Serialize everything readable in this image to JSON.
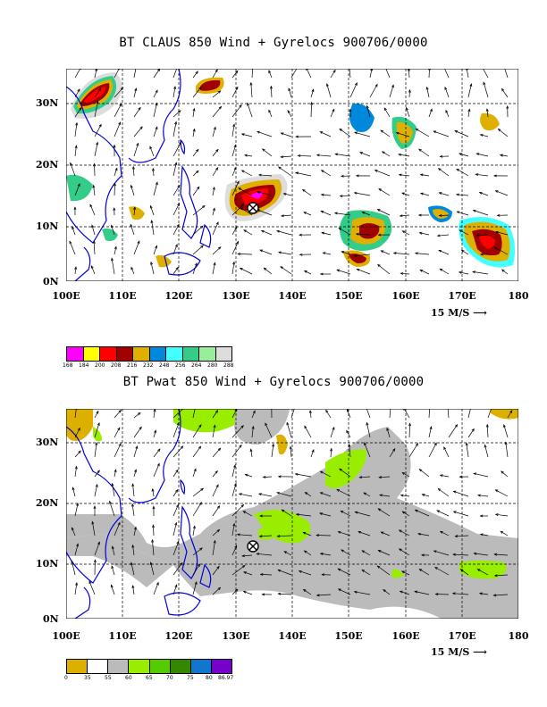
{
  "panel1": {
    "title": "BT CLAUS 850 Wind + Gyrelocs 900706/0000",
    "lat_labels": [
      "30N",
      "20N",
      "10N",
      "0N"
    ],
    "lon_labels": [
      "100E",
      "110E",
      "120E",
      "130E",
      "140E",
      "150E",
      "160E",
      "170E",
      "180"
    ],
    "scale_label": "15 M/S",
    "colorbar": {
      "labels": [
        "168",
        "184",
        "200",
        "208",
        "216",
        "232",
        "248",
        "256",
        "264",
        "280",
        "288"
      ],
      "colors": [
        "#ff00ff",
        "#ffff00",
        "#ff0000",
        "#a00000",
        "#e0b000",
        "#0088dd",
        "#44ffff",
        "#33cc88",
        "#99ee99",
        "#dddddd"
      ]
    }
  },
  "panel2": {
    "title": "BT Pwat 850 Wind + Gyrelocs 900706/0000",
    "lat_labels": [
      "30N",
      "20N",
      "10N",
      "0N"
    ],
    "lon_labels": [
      "100E",
      "110E",
      "120E",
      "130E",
      "140E",
      "150E",
      "160E",
      "170E",
      "180"
    ],
    "scale_label": "15 M/S",
    "colorbar": {
      "labels": [
        "0",
        "35",
        "55",
        "60",
        "65",
        "70",
        "75",
        "80",
        "86.97"
      ],
      "colors": [
        "#ddb000",
        "#ffffff",
        "#bbbbbb",
        "#99ee00",
        "#55cc00",
        "#338800",
        "#1177cc",
        "#7700cc"
      ]
    }
  },
  "gyre_marker": {
    "lon": 133,
    "lat": 12
  }
}
